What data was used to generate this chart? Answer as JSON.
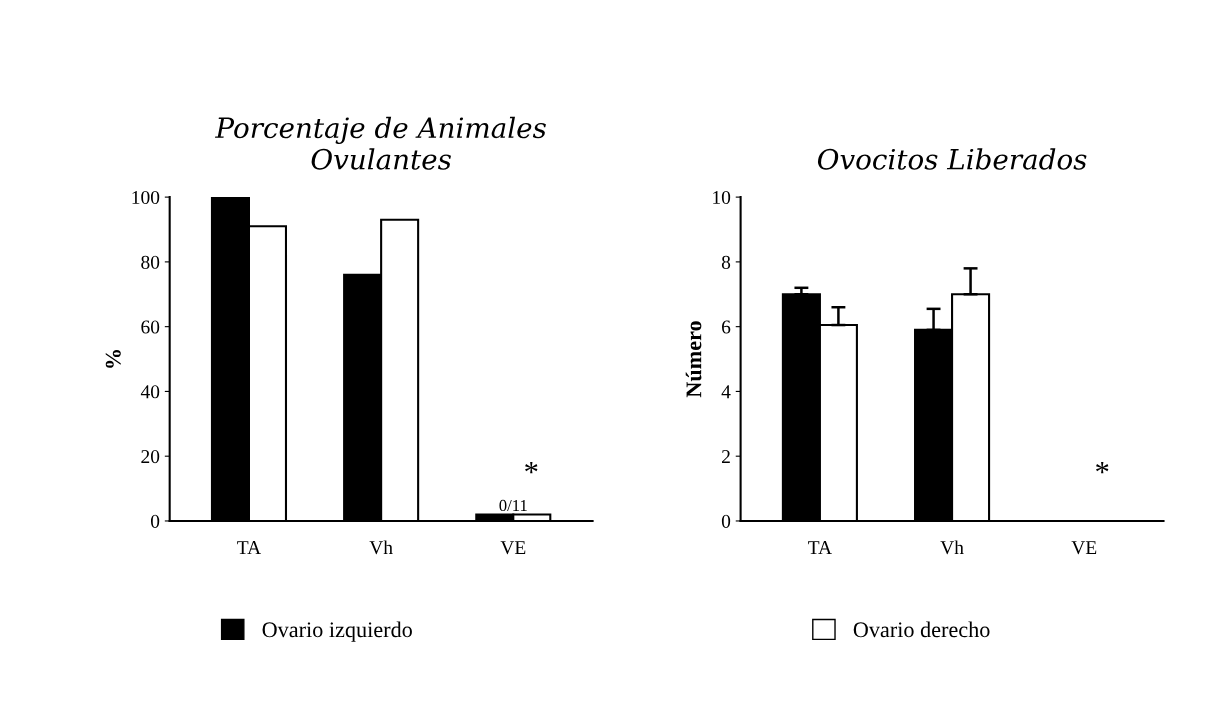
{
  "chart_data": [
    {
      "type": "bar",
      "title": "Porcentaje de Animales\nOvulantes",
      "ylabel": "%",
      "categories": [
        "TA",
        "Vh",
        "VE"
      ],
      "ylim": [
        0,
        100
      ],
      "yticks": [
        0,
        20,
        40,
        60,
        80,
        100
      ],
      "grid": false,
      "legend": "bottom",
      "series": [
        {
          "name": "Ovario izquierdo",
          "color": "#000000",
          "values": [
            100,
            76,
            2
          ]
        },
        {
          "name": "Ovario derecho",
          "color": "#ffffff",
          "values": [
            91,
            93,
            2
          ]
        }
      ],
      "annotations": [
        "*",
        {
          "text": "0/11",
          "x": "VE",
          "y": 2
        }
      ]
    },
    {
      "type": "bar",
      "title": "Ovocitos Liberados",
      "ylabel": "Número",
      "categories": [
        "TA",
        "Vh",
        "VE"
      ],
      "ylim": [
        0,
        10
      ],
      "yticks": [
        0,
        2,
        4,
        6,
        8,
        10
      ],
      "grid": false,
      "series": [
        {
          "color": "#000000",
          "values": [
            7.0,
            5.9,
            0
          ],
          "errors": [
            0.2,
            0.65,
            null
          ]
        },
        {
          "color": "#ffffff",
          "values": [
            6.05,
            7.0,
            0
          ],
          "errors": [
            0.55,
            0.8,
            null
          ]
        }
      ],
      "annotations": [
        "*"
      ]
    }
  ]
}
